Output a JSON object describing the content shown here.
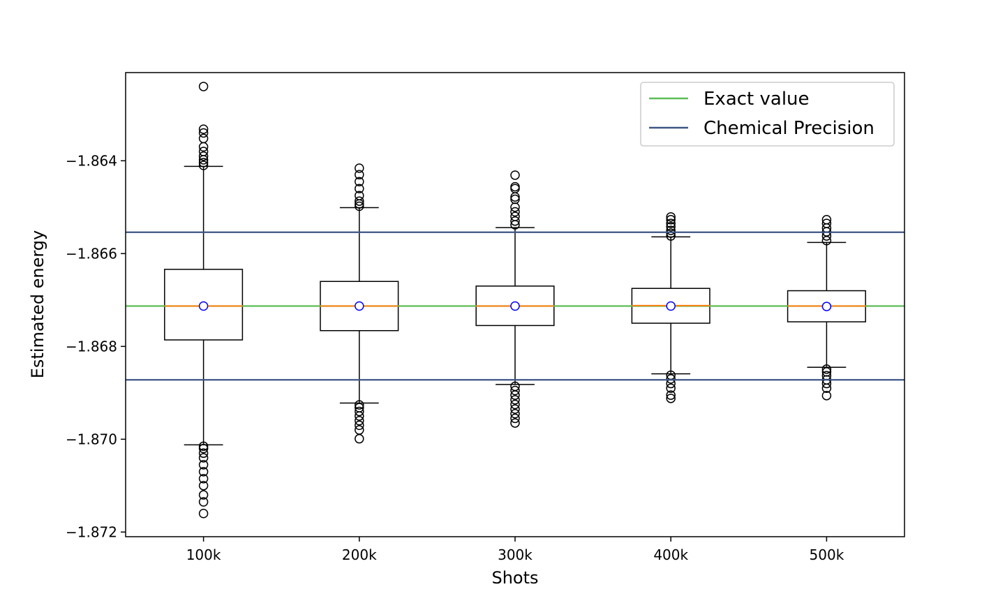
{
  "chart_data": {
    "type": "box",
    "xlabel": "Shots",
    "ylabel": "Estimated energy",
    "categories": [
      "100k",
      "200k",
      "300k",
      "400k",
      "500k"
    ],
    "ylim": [
      -1.8721,
      -1.8621
    ],
    "yticks": [
      -1.864,
      -1.866,
      -1.868,
      -1.87,
      -1.872
    ],
    "ytick_labels": [
      "−1.864",
      "−1.866",
      "−1.868",
      "−1.870",
      "−1.872"
    ],
    "boxes": [
      {
        "category": "100k",
        "q1": -1.86786,
        "median": -1.86713,
        "q3": -1.86634,
        "mean": -1.86713,
        "whisker_low": -1.87012,
        "whisker_high": -1.86412,
        "outliers_high": [
          -1.8624,
          -1.86332,
          -1.8634,
          -1.86352,
          -1.8637,
          -1.8638,
          -1.8639,
          -1.86398,
          -1.86404,
          -1.8641
        ],
        "outliers_low": [
          -1.87015,
          -1.8702,
          -1.8703,
          -1.8704,
          -1.87055,
          -1.8707,
          -1.87085,
          -1.871,
          -1.8712,
          -1.87135,
          -1.8716
        ]
      },
      {
        "category": "200k",
        "q1": -1.86766,
        "median": -1.86713,
        "q3": -1.8666,
        "mean": -1.86713,
        "whisker_low": -1.86922,
        "whisker_high": -1.86501,
        "outliers_high": [
          -1.86416,
          -1.8643,
          -1.86445,
          -1.8646,
          -1.86475,
          -1.86487,
          -1.86493,
          -1.86498
        ],
        "outliers_low": [
          -1.86926,
          -1.86932,
          -1.8694,
          -1.8695,
          -1.8696,
          -1.8697,
          -1.8698,
          -1.86999
        ]
      },
      {
        "category": "300k",
        "q1": -1.86755,
        "median": -1.86713,
        "q3": -1.8667,
        "mean": -1.86713,
        "whisker_low": -1.86882,
        "whisker_high": -1.86544,
        "outliers_high": [
          -1.86431,
          -1.86456,
          -1.8646,
          -1.86478,
          -1.86483,
          -1.865,
          -1.8651,
          -1.8652,
          -1.8653,
          -1.86538
        ],
        "outliers_low": [
          -1.86886,
          -1.86895,
          -1.86905,
          -1.86915,
          -1.86925,
          -1.86935,
          -1.86945,
          -1.86955,
          -1.86965
        ]
      },
      {
        "category": "400k",
        "q1": -1.8675,
        "median": -1.86712,
        "q3": -1.86675,
        "mean": -1.86713,
        "whisker_low": -1.86859,
        "whisker_high": -1.86564,
        "outliers_high": [
          -1.86521,
          -1.86527,
          -1.86535,
          -1.86542,
          -1.8655,
          -1.86556,
          -1.86562
        ],
        "outliers_low": [
          -1.86862,
          -1.8687,
          -1.8688,
          -1.8689,
          -1.86905,
          -1.86912
        ]
      },
      {
        "category": "500k",
        "q1": -1.86747,
        "median": -1.86713,
        "q3": -1.8668,
        "mean": -1.86714,
        "whisker_low": -1.86845,
        "whisker_high": -1.86576,
        "outliers_high": [
          -1.86527,
          -1.86535,
          -1.86545,
          -1.86553,
          -1.86562,
          -1.86572
        ],
        "outliers_low": [
          -1.86849,
          -1.86855,
          -1.86863,
          -1.86872,
          -1.8688,
          -1.8689,
          -1.86906
        ]
      }
    ],
    "reference_lines": [
      {
        "name": "Exact value",
        "y": -1.86713,
        "color": "#5cbd57"
      },
      {
        "name": "Chemical Precision",
        "y": -1.86554,
        "color": "#3d5586"
      },
      {
        "name": "Chemical Precision",
        "y": -1.86872,
        "color": "#3d5586"
      }
    ],
    "legend": {
      "placement": "top-right",
      "entries": [
        {
          "label": "Exact value",
          "color": "#5cbd57"
        },
        {
          "label": "Chemical Precision",
          "color": "#3d5586"
        }
      ]
    },
    "colors": {
      "median": "#ff7f0e",
      "mean_marker": "#0000ff",
      "box": "#000000"
    },
    "grid": false
  }
}
